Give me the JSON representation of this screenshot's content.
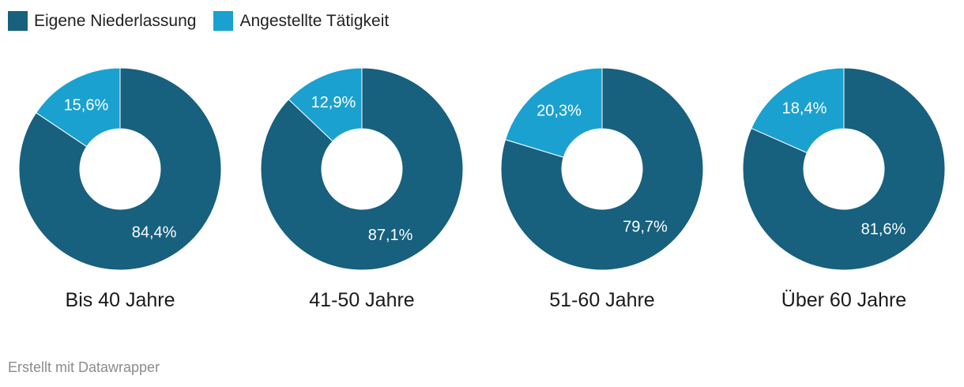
{
  "legend": {
    "items": [
      {
        "label": "Eigene Niederlassung",
        "color": "#17607e"
      },
      {
        "label": "Angestellte Tätigkeit",
        "color": "#1aa1d0"
      }
    ]
  },
  "chart_data": [
    {
      "type": "pie",
      "title": "Bis 40 Jahre",
      "slices": [
        {
          "label": "Eigene Niederlassung",
          "value": 84.4,
          "text": "84,4%"
        },
        {
          "label": "Angestellte Tätigkeit",
          "value": 15.6,
          "text": "15,6%"
        }
      ]
    },
    {
      "type": "pie",
      "title": "41-50 Jahre",
      "slices": [
        {
          "label": "Eigene Niederlassung",
          "value": 87.1,
          "text": "87,1%"
        },
        {
          "label": "Angestellte Tätigkeit",
          "value": 12.9,
          "text": "12,9%"
        }
      ]
    },
    {
      "type": "pie",
      "title": "51-60 Jahre",
      "slices": [
        {
          "label": "Eigene Niederlassung",
          "value": 79.7,
          "text": "79,7%"
        },
        {
          "label": "Angestellte Tätigkeit",
          "value": 20.3,
          "text": "20,3%"
        }
      ]
    },
    {
      "type": "pie",
      "title": "Über 60 Jahre",
      "slices": [
        {
          "label": "Eigene Niederlassung",
          "value": 81.6,
          "text": "81,6%"
        },
        {
          "label": "Angestellte Tätigkeit",
          "value": 18.4,
          "text": "18,4%"
        }
      ]
    }
  ],
  "footer": {
    "credit": "Erstellt mit Datawrapper"
  }
}
